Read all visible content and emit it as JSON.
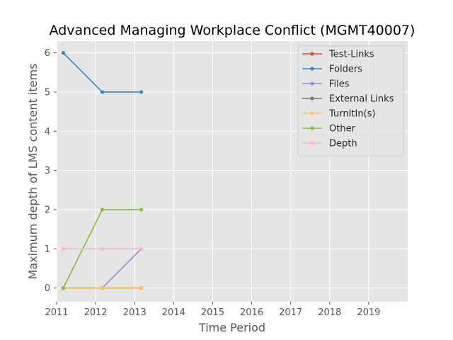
{
  "chart_data": {
    "type": "line",
    "title": "Advanced Managing Workplace Conflict (MGMT40007)",
    "xlabel": "Time Period",
    "ylabel": "Maximum depth of LMS content items",
    "xlim": [
      2011,
      2020
    ],
    "ylim": [
      -0.35,
      6.3
    ],
    "xticks": [
      2011,
      2012,
      2013,
      2014,
      2015,
      2016,
      2017,
      2018,
      2019
    ],
    "yticks": [
      0,
      1,
      2,
      3,
      4,
      5,
      6
    ],
    "grid": true,
    "legend_position": "top-right",
    "x": [
      2011.17,
      2012.17,
      2013.17
    ],
    "series": [
      {
        "name": "Test-Links",
        "color": "#E24A33",
        "values": [
          0,
          0,
          0
        ]
      },
      {
        "name": "Folders",
        "color": "#348ABD",
        "values": [
          6,
          5,
          5
        ]
      },
      {
        "name": "Files",
        "color": "#988ED5",
        "values": [
          0,
          0,
          1
        ]
      },
      {
        "name": "External Links",
        "color": "#777777",
        "values": [
          0,
          0,
          0
        ]
      },
      {
        "name": "TurnItIn(s)",
        "color": "#FBC15E",
        "values": [
          0,
          0,
          0
        ]
      },
      {
        "name": "Other",
        "color": "#8EBA42",
        "values": [
          0,
          2,
          2
        ]
      },
      {
        "name": "Depth",
        "color": "#FFB5B8",
        "values": [
          1,
          1,
          1
        ]
      }
    ]
  }
}
